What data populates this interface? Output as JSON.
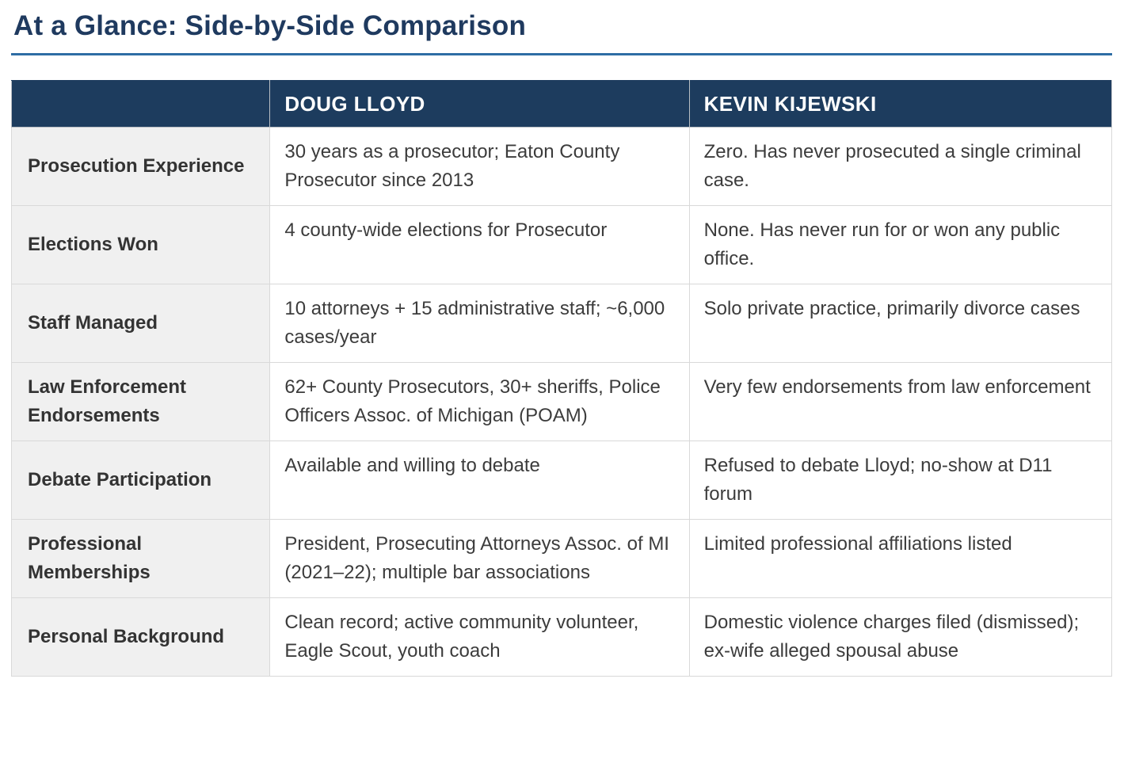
{
  "page": {
    "title": "At a Glance: Side-by-Side Comparison"
  },
  "table": {
    "columns": [
      "",
      "DOUG LLOYD",
      "KEVIN KIJEWSKI"
    ],
    "rows": [
      {
        "label": "Prosecution Experience",
        "doug": "30 years as a prosecutor; Eaton County Prosecutor since 2013",
        "kevin": "Zero. Has never prosecuted a single criminal case."
      },
      {
        "label": "Elections Won",
        "doug": "4 county-wide elections for Prosecutor",
        "kevin": "None. Has never run for or won any public office."
      },
      {
        "label": "Staff Managed",
        "doug": "10 attorneys + 15 administrative staff; ~6,000 cases/year",
        "kevin": "Solo private practice, primarily divorce cases"
      },
      {
        "label": "Law Enforcement Endorsements",
        "doug": "62+ County Prosecutors, 30+ sheriffs, Police Officers Assoc. of Michigan (POAM)",
        "kevin": "Very few endorsements from law enforcement"
      },
      {
        "label": "Debate Participation",
        "doug": "Available and willing to debate",
        "kevin": "Refused to debate Lloyd; no-show at D11 forum"
      },
      {
        "label": "Professional Memberships",
        "doug": "President, Prosecuting Attorneys Assoc. of MI (2021–22); multiple bar associations",
        "kevin": "Limited professional affiliations listed"
      },
      {
        "label": "Personal Background",
        "doug": "Clean record; active community volunteer, Eagle Scout, youth coach",
        "kevin": "Domestic violence charges filed (dismissed); ex-wife alleged spousal abuse"
      }
    ]
  },
  "colors": {
    "header_background": "#1d3c5e",
    "title_text": "#1f3a5f",
    "title_rule": "#2e6da4",
    "label_cell_background": "#f0f0f0",
    "body_text": "#3c3c3c",
    "cell_border": "#d9d9d9"
  }
}
